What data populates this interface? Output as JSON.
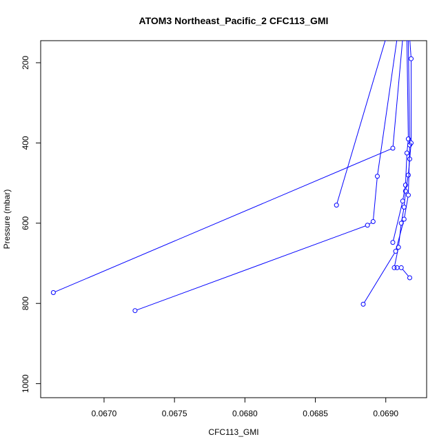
{
  "chart_data": {
    "type": "line",
    "title": "ATOM3 Northeast_Pacific_2 CFC113_GMI",
    "xlabel": "CFC113_GMI",
    "ylabel": "Pressure (mbar)",
    "xlim": [
      0.06655,
      0.06929
    ],
    "ylim": [
      1035,
      145
    ],
    "y_reversed": true,
    "x_ticks": [
      0.067,
      0.0675,
      0.068,
      0.0685,
      0.069
    ],
    "x_tick_labels": [
      "0.0670",
      "0.0675",
      "0.0680",
      "0.0685",
      "0.0690"
    ],
    "y_ticks": [
      200,
      400,
      600,
      800,
      1000
    ],
    "y_tick_labels": [
      "200",
      "400",
      "600",
      "800",
      "1000"
    ],
    "series_color": "#0000ff",
    "marker": "open-circle",
    "series": [
      {
        "points": [
          [
            0.06917,
            140
          ],
          [
            0.06918,
            190
          ],
          [
            0.06918,
            400
          ],
          [
            0.06917,
            440
          ],
          [
            0.06916,
            480
          ],
          [
            0.06914,
            520
          ],
          [
            0.06913,
            560
          ],
          [
            0.06911,
            600
          ],
          [
            0.06909,
            660
          ],
          [
            0.06906,
            711
          ],
          [
            0.06908,
            711
          ],
          [
            0.06911,
            711
          ],
          [
            0.06917,
            736
          ]
        ]
      },
      {
        "points": [
          [
            0.06912,
            140
          ],
          [
            0.06905,
            413
          ],
          [
            0.06664,
            773
          ]
        ]
      },
      {
        "points": [
          [
            0.069,
            140
          ],
          [
            0.06865,
            555
          ]
        ]
      },
      {
        "points": [
          [
            0.06908,
            140
          ],
          [
            0.06894,
            483
          ],
          [
            0.06891,
            596
          ],
          [
            0.06887,
            605
          ],
          [
            0.06722,
            818
          ]
        ]
      },
      {
        "points": [
          [
            0.06915,
            140
          ],
          [
            0.06916,
            390
          ],
          [
            0.06915,
            425
          ],
          [
            0.06914,
            505
          ],
          [
            0.06912,
            545
          ],
          [
            0.06905,
            648
          ]
        ]
      },
      {
        "points": [
          [
            0.06916,
            140
          ],
          [
            0.06917,
            405
          ],
          [
            0.06916,
            530
          ],
          [
            0.06913,
            590
          ],
          [
            0.06907,
            670
          ],
          [
            0.06884,
            802
          ]
        ]
      }
    ]
  }
}
